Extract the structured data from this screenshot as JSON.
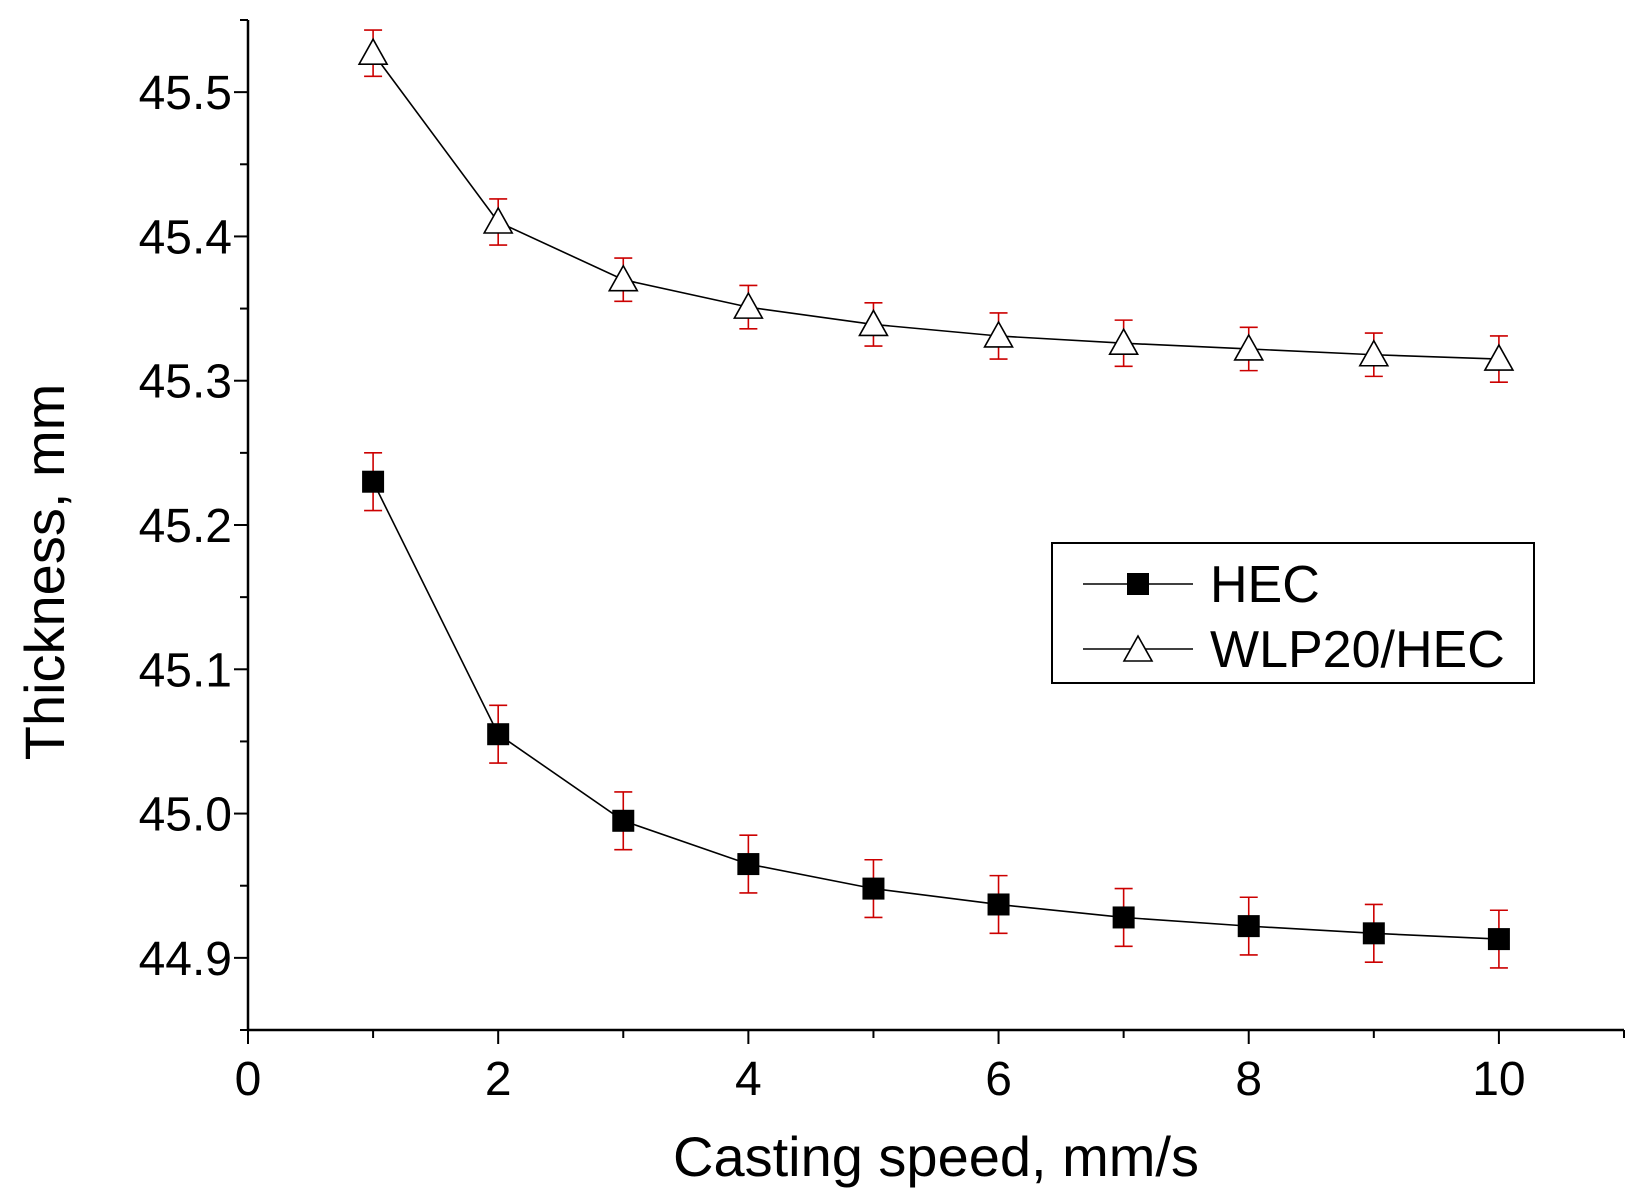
{
  "chart_data": {
    "type": "line",
    "title": "",
    "xlabel": "Casting speed, mm/s",
    "ylabel": "Thickness, mm",
    "xlim": [
      0,
      11
    ],
    "ylim": [
      44.85,
      45.55
    ],
    "x_ticks": [
      0,
      2,
      4,
      6,
      8,
      10
    ],
    "x_tick_labels": [
      "0",
      "2",
      "4",
      "6",
      "8",
      "10"
    ],
    "y_ticks": [
      44.9,
      45.0,
      45.1,
      45.2,
      45.3,
      45.4,
      45.5
    ],
    "y_tick_labels": [
      "44.9",
      "45.0",
      "45.1",
      "45.2",
      "45.3",
      "45.4",
      "45.5"
    ],
    "grid": false,
    "legend_position": "center-right",
    "error_bar_color": "#cc0000",
    "line_color": "#000000",
    "series": [
      {
        "name": "HEC",
        "marker": "filled-square",
        "x": [
          1,
          2,
          3,
          4,
          5,
          6,
          7,
          8,
          9,
          10
        ],
        "values": [
          45.23,
          45.055,
          44.995,
          44.965,
          44.948,
          44.937,
          44.928,
          44.922,
          44.917,
          44.913
        ],
        "error": [
          0.02,
          0.02,
          0.02,
          0.02,
          0.02,
          0.02,
          0.02,
          0.02,
          0.02,
          0.02
        ]
      },
      {
        "name": "WLP20/HEC",
        "marker": "open-triangle",
        "x": [
          1,
          2,
          3,
          4,
          5,
          6,
          7,
          8,
          9,
          10
        ],
        "values": [
          45.527,
          45.41,
          45.37,
          45.351,
          45.339,
          45.331,
          45.326,
          45.322,
          45.318,
          45.315
        ],
        "error": [
          0.016,
          0.016,
          0.015,
          0.015,
          0.015,
          0.016,
          0.016,
          0.015,
          0.015,
          0.016
        ]
      }
    ]
  }
}
